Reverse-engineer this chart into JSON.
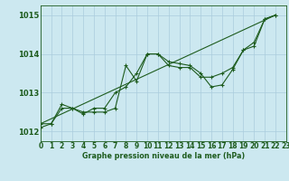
{
  "title": "Graphe pression niveau de la mer (hPa)",
  "bg_color": "#cce8f0",
  "grid_color": "#aaccdd",
  "line_color": "#1e5c1e",
  "xlim": [
    0,
    23
  ],
  "ylim": [
    1011.75,
    1015.25
  ],
  "yticks": [
    1012,
    1013,
    1014,
    1015
  ],
  "xticks": [
    0,
    1,
    2,
    3,
    4,
    5,
    6,
    7,
    8,
    9,
    10,
    11,
    12,
    13,
    14,
    15,
    16,
    17,
    18,
    19,
    20,
    21,
    22,
    23
  ],
  "series1": [
    1012.1,
    1012.2,
    1012.6,
    1012.6,
    1012.5,
    1012.5,
    1012.5,
    1012.6,
    1013.7,
    1013.3,
    1014.0,
    1014.0,
    1013.8,
    1013.75,
    1013.7,
    1013.5,
    1013.15,
    1013.2,
    1013.6,
    1014.1,
    1014.2,
    1014.9,
    1015.0,
    null
  ],
  "series2": [
    1012.2,
    1012.2,
    1012.7,
    1012.6,
    1012.45,
    1012.6,
    1012.6,
    1013.0,
    1013.15,
    1013.5,
    1014.0,
    1014.0,
    1013.7,
    1013.65,
    1013.65,
    1013.4,
    1013.4,
    1013.5,
    1013.65,
    1014.1,
    1014.3,
    1014.9,
    1015.0,
    null
  ],
  "line_straight": [
    [
      0,
      1012.2
    ],
    [
      22,
      1015.0
    ]
  ],
  "xlabel_fontsize": 5.8,
  "tick_fontsize": 5.5,
  "ytick_fontsize": 6.0
}
